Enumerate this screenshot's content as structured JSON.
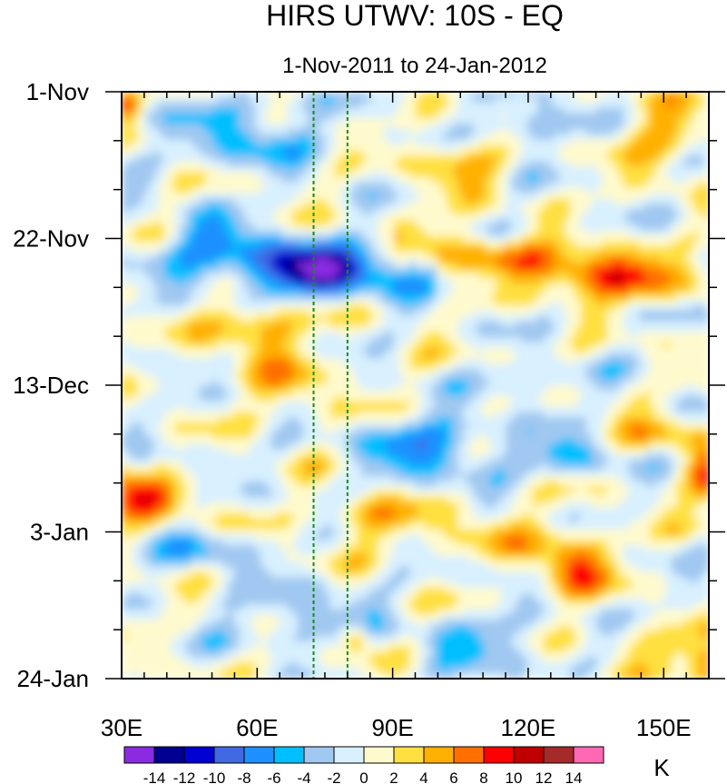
{
  "chart_data": {
    "type": "heatmap",
    "title": "HIRS UTWV: 10S - EQ",
    "subtitle": "1-Nov-2011 to 24-Jan-2012",
    "x_axis": {
      "range": [
        30,
        160
      ],
      "ticks": [
        30,
        60,
        90,
        120,
        150
      ],
      "tick_labels": [
        "30E",
        "60E",
        "90E",
        "120E",
        "150E"
      ]
    },
    "y_axis": {
      "range_days": [
        0,
        84
      ],
      "direction": "time increases downward",
      "ticks": [
        0,
        21,
        42,
        63,
        84
      ],
      "tick_labels": [
        "1-Nov",
        "22-Nov",
        "13-Dec",
        "3-Jan",
        "24-Jan"
      ]
    },
    "reference_lines_lon": [
      72.5,
      80
    ],
    "colorbar": {
      "unit": "K",
      "levels": [
        -14,
        -12,
        -10,
        -8,
        -6,
        -4,
        -2,
        0,
        2,
        4,
        6,
        8,
        10,
        12,
        14
      ],
      "tick_labels": [
        "-14",
        "-12",
        "-10",
        "-8",
        "-6",
        "-4",
        "-2",
        "0",
        "2",
        "4",
        "6",
        "8",
        "10",
        "12",
        "14"
      ],
      "colors": [
        "#8a2be2",
        "#000090",
        "#0000d0",
        "#4169e1",
        "#1e90ff",
        "#00bfff",
        "#a0c8f0",
        "#d8f0ff",
        "#fffacd",
        "#ffe040",
        "#ffb000",
        "#ff7000",
        "#ff0000",
        "#c00000",
        "#a52a2a",
        "#ff69b4"
      ]
    },
    "features": [
      {
        "lon": [
          40,
          95
        ],
        "day": [
          22,
          30
        ],
        "value": -11,
        "note": "strong negative band tilting eastward"
      },
      {
        "lon": [
          95,
          150
        ],
        "day": [
          18,
          30
        ],
        "value": 9,
        "note": "positive band east of 95E"
      },
      {
        "lon": [
          30,
          45
        ],
        "day": [
          58,
          62
        ],
        "value": 9,
        "note": "positive anomaly near 30E early Jan"
      },
      {
        "lon": [
          125,
          135
        ],
        "day": [
          66,
          71
        ],
        "value": 10,
        "note": "positive anomaly near 130E"
      }
    ]
  }
}
